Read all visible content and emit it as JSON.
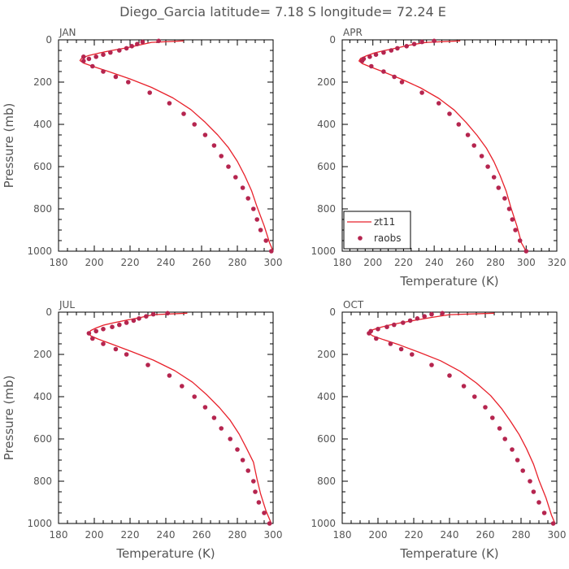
{
  "title": "Diego_Garcia   latitude= 7.18 S longitude= 72.24 E",
  "colors": {
    "model_line": "#e8212b",
    "obs_marker": "#b5254f",
    "axis": "#000000",
    "text": "#555555"
  },
  "chart_data": [
    {
      "type": "line",
      "panel": "JAN",
      "title": "JAN",
      "xlabel": "",
      "ylabel": "Pressure (mb)",
      "xlim": [
        180,
        300
      ],
      "ylim": [
        1000,
        0
      ],
      "xticks": [
        180,
        200,
        220,
        240,
        260,
        280,
        300
      ],
      "yticks": [
        0,
        200,
        400,
        600,
        800,
        1000
      ],
      "series": [
        {
          "name": "",
          "kind": "line",
          "points": [
            [
              250,
              5
            ],
            [
              232,
              12
            ],
            [
              225,
              25
            ],
            [
              218,
              38
            ],
            [
              210,
              50
            ],
            [
              203,
              62
            ],
            [
              197,
              74
            ],
            [
              193,
              86
            ],
            [
              192,
              98
            ],
            [
              194,
              110
            ],
            [
              199,
              125
            ],
            [
              208,
              150
            ],
            [
              220,
              185
            ],
            [
              232,
              225
            ],
            [
              244,
              275
            ],
            [
              254,
              330
            ],
            [
              262,
              390
            ],
            [
              269,
              450
            ],
            [
              275,
              510
            ],
            [
              280,
              575
            ],
            [
              284,
              640
            ],
            [
              288,
              715
            ],
            [
              291,
              790
            ],
            [
              295,
              880
            ],
            [
              298,
              960
            ],
            [
              300,
              1000
            ]
          ]
        },
        {
          "name": "",
          "kind": "scatter",
          "points": [
            [
              236,
              5
            ],
            [
              227,
              10
            ],
            [
              224,
              20
            ],
            [
              221,
              30
            ],
            [
              218,
              40
            ],
            [
              214,
              50
            ],
            [
              209,
              60
            ],
            [
              205,
              70
            ],
            [
              201,
              80
            ],
            [
              197,
              90
            ],
            [
              194,
              80
            ],
            [
              194,
              100
            ],
            [
              199,
              125
            ],
            [
              205,
              150
            ],
            [
              212,
              175
            ],
            [
              219,
              200
            ],
            [
              231,
              250
            ],
            [
              242,
              300
            ],
            [
              250,
              350
            ],
            [
              256,
              400
            ],
            [
              262,
              450
            ],
            [
              267,
              500
            ],
            [
              271,
              550
            ],
            [
              275,
              600
            ],
            [
              279,
              650
            ],
            [
              283,
              700
            ],
            [
              286,
              750
            ],
            [
              289,
              800
            ],
            [
              291,
              850
            ],
            [
              293,
              900
            ],
            [
              296,
              950
            ],
            [
              299,
              1000
            ]
          ]
        }
      ]
    },
    {
      "type": "line",
      "panel": "APR",
      "title": "APR",
      "xlabel": "Temperature (K)",
      "ylabel": "",
      "xlim": [
        180,
        320
      ],
      "ylim": [
        1000,
        0
      ],
      "xticks": [
        180,
        200,
        220,
        240,
        260,
        280,
        300,
        320
      ],
      "yticks": [
        0,
        200,
        400,
        600,
        800,
        1000
      ],
      "legend": {
        "position": "bottom-left",
        "entries": [
          "zt11",
          "raobs"
        ]
      },
      "series": [
        {
          "name": "zt11",
          "kind": "line",
          "points": [
            [
              257,
              5
            ],
            [
              235,
              12
            ],
            [
              224,
              25
            ],
            [
              216,
              38
            ],
            [
              208,
              50
            ],
            [
              201,
              62
            ],
            [
              196,
              75
            ],
            [
              192,
              88
            ],
            [
              191,
              100
            ],
            [
              193,
              112
            ],
            [
              198,
              127
            ],
            [
              207,
              152
            ],
            [
              219,
              187
            ],
            [
              231,
              227
            ],
            [
              243,
              277
            ],
            [
              253,
              332
            ],
            [
              261,
              392
            ],
            [
              268,
              452
            ],
            [
              274,
              512
            ],
            [
              279,
              577
            ],
            [
              283,
              642
            ],
            [
              287,
              717
            ],
            [
              290,
              792
            ],
            [
              294,
              882
            ],
            [
              297,
              962
            ],
            [
              300,
              1000
            ]
          ]
        },
        {
          "name": "raobs",
          "kind": "scatter",
          "points": [
            [
              240,
              5
            ],
            [
              232,
              10
            ],
            [
              227,
              20
            ],
            [
              222,
              30
            ],
            [
              216,
              40
            ],
            [
              212,
              50
            ],
            [
              207,
              60
            ],
            [
              202,
              70
            ],
            [
              198,
              80
            ],
            [
              194,
              90
            ],
            [
              193,
              100
            ],
            [
              199,
              125
            ],
            [
              207,
              150
            ],
            [
              214,
              175
            ],
            [
              219,
              200
            ],
            [
              232,
              250
            ],
            [
              243,
              300
            ],
            [
              250,
              350
            ],
            [
              256,
              400
            ],
            [
              262,
              450
            ],
            [
              266,
              500
            ],
            [
              271,
              550
            ],
            [
              275,
              600
            ],
            [
              279,
              650
            ],
            [
              282,
              700
            ],
            [
              286,
              750
            ],
            [
              289,
              800
            ],
            [
              291,
              850
            ],
            [
              293,
              900
            ],
            [
              296,
              950
            ],
            [
              300,
              1000
            ]
          ]
        }
      ]
    },
    {
      "type": "line",
      "panel": "JUL",
      "title": "JUL",
      "xlabel": "Temperature (K)",
      "ylabel": "Pressure (mb)",
      "xlim": [
        180,
        300
      ],
      "ylim": [
        1000,
        0
      ],
      "xticks": [
        180,
        200,
        220,
        240,
        260,
        280,
        300
      ],
      "yticks": [
        0,
        200,
        400,
        600,
        800,
        1000
      ],
      "series": [
        {
          "name": "",
          "kind": "line",
          "points": [
            [
              252,
              5
            ],
            [
              233,
              12
            ],
            [
              226,
              25
            ],
            [
              218,
              38
            ],
            [
              211,
              50
            ],
            [
              205,
              62
            ],
            [
              201,
              75
            ],
            [
              198,
              87
            ],
            [
              197,
              100
            ],
            [
              198,
              112
            ],
            [
              202,
              127
            ],
            [
              210,
              152
            ],
            [
              221,
              187
            ],
            [
              233,
              227
            ],
            [
              245,
              277
            ],
            [
              255,
              332
            ],
            [
              263,
              392
            ],
            [
              270,
              452
            ],
            [
              276,
              512
            ],
            [
              281,
              577
            ],
            [
              285,
              642
            ],
            [
              289,
              710
            ],
            [
              291,
              790
            ],
            [
              293,
              860
            ],
            [
              296,
              940
            ],
            [
              299,
              1000
            ]
          ]
        },
        {
          "name": "",
          "kind": "scatter",
          "points": [
            [
              241,
              5
            ],
            [
              233,
              10
            ],
            [
              229,
              20
            ],
            [
              225,
              30
            ],
            [
              222,
              40
            ],
            [
              218,
              50
            ],
            [
              214,
              60
            ],
            [
              210,
              70
            ],
            [
              205,
              80
            ],
            [
              201,
              90
            ],
            [
              197,
              100
            ],
            [
              199,
              125
            ],
            [
              205,
              150
            ],
            [
              212,
              175
            ],
            [
              218,
              200
            ],
            [
              230,
              250
            ],
            [
              242,
              300
            ],
            [
              249,
              350
            ],
            [
              256,
              400
            ],
            [
              262,
              450
            ],
            [
              267,
              500
            ],
            [
              271,
              550
            ],
            [
              276,
              600
            ],
            [
              280,
              650
            ],
            [
              283,
              700
            ],
            [
              286,
              750
            ],
            [
              289,
              800
            ],
            [
              290,
              850
            ],
            [
              292,
              900
            ],
            [
              295,
              950
            ],
            [
              298,
              1000
            ]
          ]
        }
      ]
    },
    {
      "type": "line",
      "panel": "OCT",
      "title": "OCT",
      "xlabel": "Temperature (K)",
      "ylabel": "",
      "xlim": [
        180,
        300
      ],
      "ylim": [
        1000,
        0
      ],
      "xticks": [
        180,
        200,
        220,
        240,
        260,
        280,
        300
      ],
      "yticks": [
        0,
        200,
        400,
        600,
        800,
        1000
      ],
      "series": [
        {
          "name": "",
          "kind": "line",
          "points": [
            [
              265,
              5
            ],
            [
              240,
              12
            ],
            [
              230,
              25
            ],
            [
              221,
              38
            ],
            [
              213,
              50
            ],
            [
              206,
              62
            ],
            [
              200,
              75
            ],
            [
              196,
              87
            ],
            [
              195,
              100
            ],
            [
              197,
              112
            ],
            [
              203,
              130
            ],
            [
              212,
              155
            ],
            [
              223,
              190
            ],
            [
              235,
              230
            ],
            [
              246,
              280
            ],
            [
              255,
              335
            ],
            [
              263,
              395
            ],
            [
              269,
              455
            ],
            [
              274,
              515
            ],
            [
              279,
              580
            ],
            [
              283,
              645
            ],
            [
              287,
              720
            ],
            [
              290,
              795
            ],
            [
              294,
              880
            ],
            [
              297,
              960
            ],
            [
              299,
              1000
            ]
          ]
        },
        {
          "name": "",
          "kind": "scatter",
          "points": [
            [
              236,
              5
            ],
            [
              230,
              10
            ],
            [
              226,
              20
            ],
            [
              222,
              30
            ],
            [
              218,
              40
            ],
            [
              214,
              50
            ],
            [
              209,
              60
            ],
            [
              205,
              70
            ],
            [
              200,
              80
            ],
            [
              196,
              90
            ],
            [
              195,
              100
            ],
            [
              199,
              125
            ],
            [
              207,
              150
            ],
            [
              213,
              175
            ],
            [
              219,
              200
            ],
            [
              230,
              250
            ],
            [
              240,
              300
            ],
            [
              248,
              350
            ],
            [
              254,
              400
            ],
            [
              260,
              450
            ],
            [
              264,
              500
            ],
            [
              268,
              550
            ],
            [
              271,
              600
            ],
            [
              275,
              650
            ],
            [
              278,
              700
            ],
            [
              281,
              750
            ],
            [
              285,
              800
            ],
            [
              287,
              850
            ],
            [
              290,
              900
            ],
            [
              293,
              950
            ],
            [
              298,
              1000
            ]
          ]
        }
      ]
    }
  ]
}
